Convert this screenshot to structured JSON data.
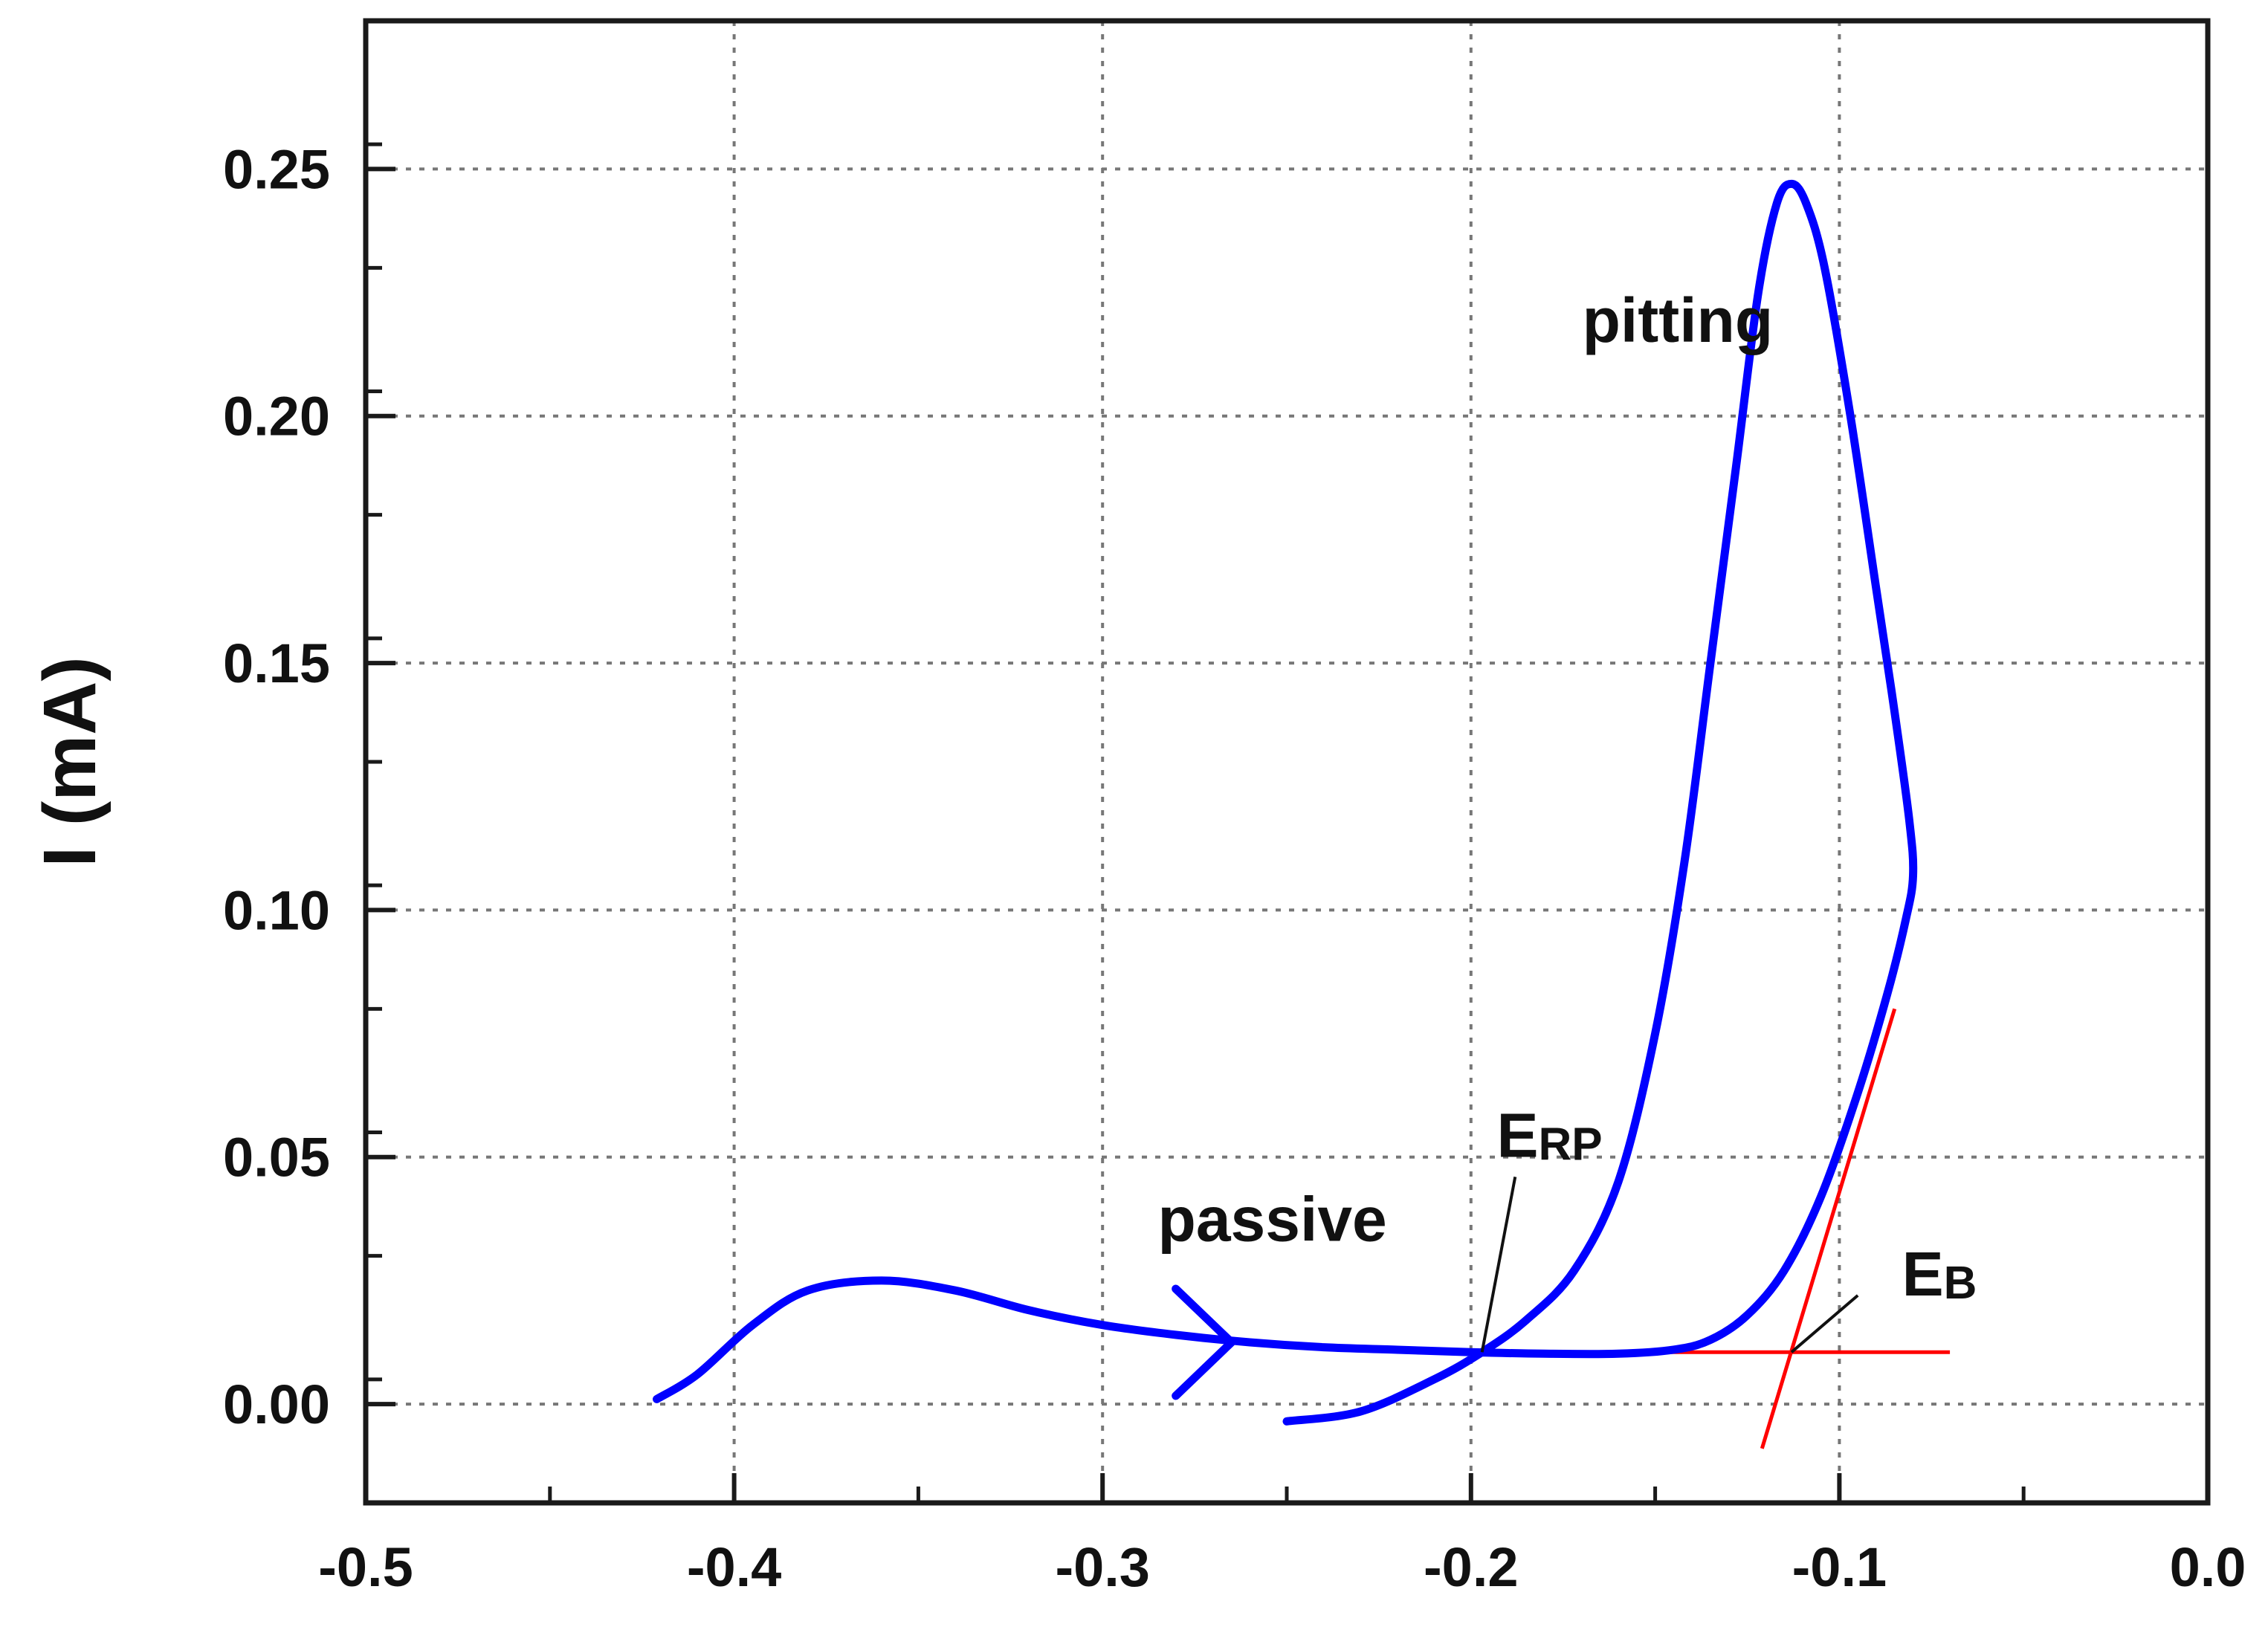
{
  "chart_data": {
    "type": "line",
    "title": "",
    "xlabel": "",
    "ylabel": "I (mA)",
    "xlim": [
      -0.5,
      0.0
    ],
    "ylim": [
      -0.02,
      0.28
    ],
    "x_ticks": [
      -0.5,
      -0.4,
      -0.3,
      -0.2,
      -0.1,
      0.0
    ],
    "x_tick_labels": [
      "-0.5",
      "-0.4",
      "-0.3",
      "-0.2",
      "-0.1",
      "0.0"
    ],
    "y_ticks": [
      0.0,
      0.05,
      0.1,
      0.15,
      0.2,
      0.25
    ],
    "y_tick_labels": [
      "0.00",
      "0.05",
      "0.10",
      "0.15",
      "0.20",
      "0.25"
    ],
    "grid": true,
    "grid_style": "dotted",
    "series": [
      {
        "color": "#0000ff",
        "points": [
          [
            -0.421,
            0.001
          ],
          [
            -0.41,
            0.006
          ],
          [
            -0.395,
            0.016
          ],
          [
            -0.38,
            0.023
          ],
          [
            -0.36,
            0.025
          ],
          [
            -0.34,
            0.023
          ],
          [
            -0.32,
            0.019
          ],
          [
            -0.3,
            0.016
          ],
          [
            -0.28,
            0.014
          ],
          [
            -0.26,
            0.0125
          ],
          [
            -0.24,
            0.0115
          ],
          [
            -0.22,
            0.011
          ],
          [
            -0.2,
            0.0105
          ],
          [
            -0.18,
            0.0102
          ],
          [
            -0.16,
            0.0102
          ],
          [
            -0.145,
            0.011
          ],
          [
            -0.135,
            0.013
          ],
          [
            -0.125,
            0.018
          ],
          [
            -0.115,
            0.027
          ],
          [
            -0.105,
            0.042
          ],
          [
            -0.095,
            0.063
          ],
          [
            -0.087,
            0.083
          ],
          [
            -0.082,
            0.098
          ],
          [
            -0.08,
            0.107
          ],
          [
            -0.081,
            0.118
          ],
          [
            -0.085,
            0.14
          ],
          [
            -0.09,
            0.165
          ],
          [
            -0.097,
            0.2
          ],
          [
            -0.104,
            0.23
          ],
          [
            -0.109,
            0.243
          ],
          [
            -0.113,
            0.247
          ],
          [
            -0.117,
            0.243
          ],
          [
            -0.122,
            0.225
          ],
          [
            -0.128,
            0.19
          ],
          [
            -0.135,
            0.15
          ],
          [
            -0.142,
            0.11
          ],
          [
            -0.15,
            0.075
          ],
          [
            -0.16,
            0.045
          ],
          [
            -0.172,
            0.027
          ],
          [
            -0.185,
            0.017
          ],
          [
            -0.197,
            0.0105
          ],
          [
            -0.21,
            0.005
          ],
          [
            -0.23,
            -0.0015
          ],
          [
            -0.25,
            -0.0035
          ]
        ]
      }
    ],
    "tangent_lines": [
      {
        "color": "#ff0000",
        "from": [
          -0.18,
          0.0105
        ],
        "to": [
          -0.07,
          0.0105
        ]
      },
      {
        "color": "#ff0000",
        "from": [
          -0.121,
          -0.009
        ],
        "to": [
          -0.085,
          0.08
        ]
      }
    ],
    "arrow": {
      "color": "#0000ff",
      "at": [
        -0.265,
        0.0125
      ]
    },
    "annotations": [
      {
        "text": "pitting",
        "at": [
          -0.118,
          0.215
        ],
        "anchor": "end"
      },
      {
        "text": "passive",
        "at": [
          -0.285,
          0.033
        ],
        "anchor": "start"
      },
      {
        "main": "E",
        "sub": "RP",
        "at": [
          -0.193,
          0.05
        ],
        "pointer_to": [
          -0.197,
          0.0105
        ],
        "pointer_from": [
          -0.188,
          0.046
        ]
      },
      {
        "main": "E",
        "sub": "B",
        "at": [
          -0.083,
          0.022
        ],
        "pointer_to": [
          -0.113,
          0.0105
        ],
        "pointer_from": [
          -0.095,
          0.022
        ]
      }
    ]
  }
}
